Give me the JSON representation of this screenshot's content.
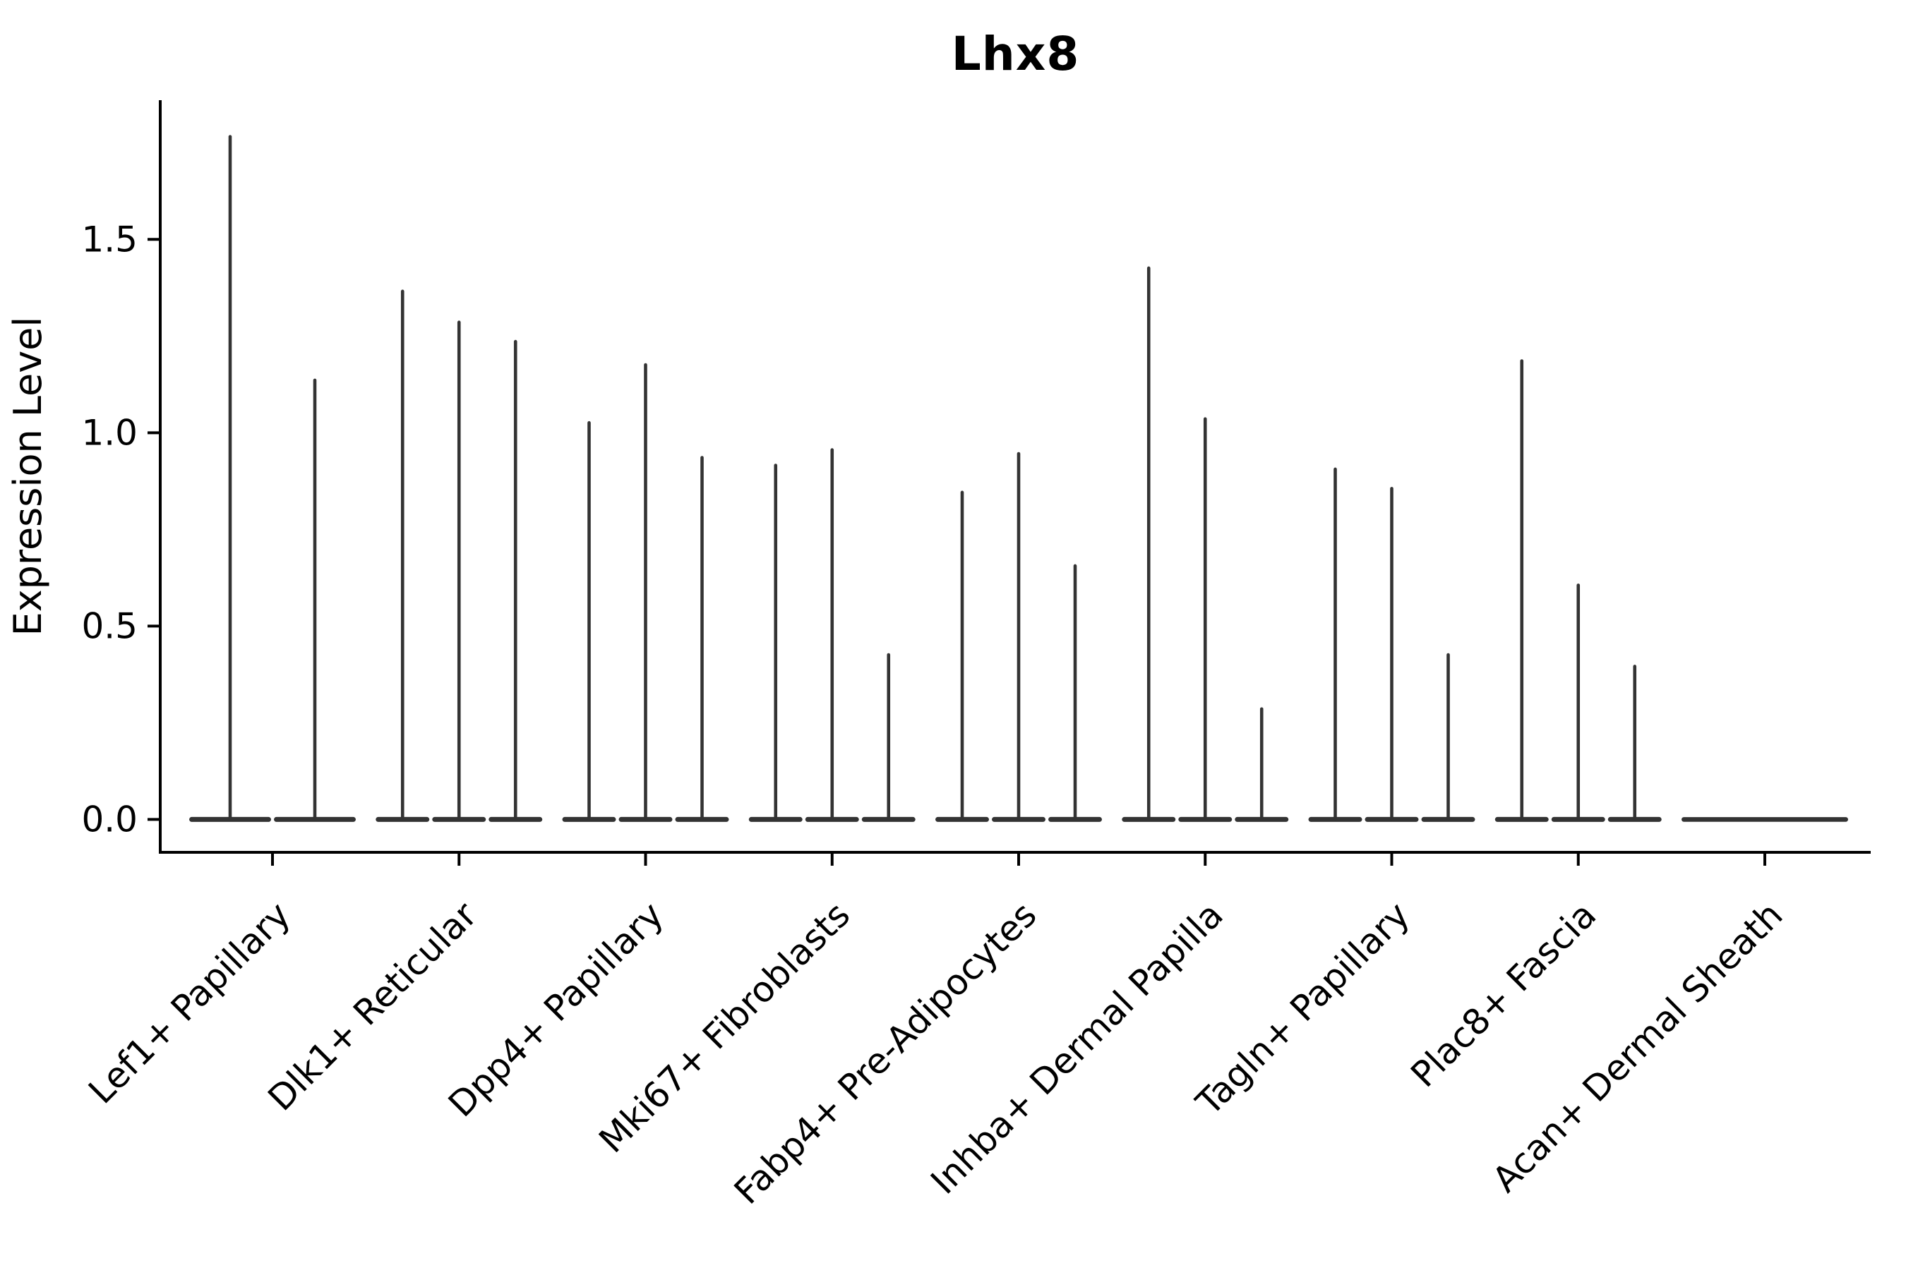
{
  "chart_data": {
    "type": "violin",
    "title": "Lhx8",
    "ylabel": "Expression Level",
    "xlabel": "",
    "ylim": [
      -0.085,
      1.86
    ],
    "yticks": [
      0.0,
      0.5,
      1.0,
      1.5
    ],
    "ytick_labels": [
      "0.0",
      "0.5",
      "1.0",
      "1.5"
    ],
    "grid": false,
    "legend_position": "none",
    "categories": [
      "Lef1+ Papillary",
      "Dlk1+ Reticular",
      "Dpp4+ Papillary",
      "Mki67+ Fibroblasts",
      "Fabp4+ Pre-Adipocytes",
      "Inhba+ Dermal Papilla",
      "Tagln+ Papillary",
      "Plac8+ Fascia",
      "Acan+ Dermal Sheath"
    ],
    "groups": [
      {
        "category": "Lef1+ Papillary",
        "n_violins": 2,
        "violin_peak_expression": [
          1.77,
          1.14
        ]
      },
      {
        "category": "Dlk1+ Reticular",
        "n_violins": 3,
        "violin_peak_expression": [
          1.37,
          1.29,
          1.24
        ]
      },
      {
        "category": "Dpp4+ Papillary",
        "n_violins": 3,
        "violin_peak_expression": [
          1.03,
          1.18,
          0.94
        ]
      },
      {
        "category": "Mki67+ Fibroblasts",
        "n_violins": 3,
        "violin_peak_expression": [
          0.92,
          0.96,
          0.43
        ]
      },
      {
        "category": "Fabp4+ Pre-Adipocytes",
        "n_violins": 3,
        "violin_peak_expression": [
          0.85,
          0.95,
          0.66
        ]
      },
      {
        "category": "Inhba+ Dermal Papilla",
        "n_violins": 3,
        "violin_peak_expression": [
          1.43,
          1.04,
          0.29
        ]
      },
      {
        "category": "Tagln+ Papillary",
        "n_violins": 3,
        "violin_peak_expression": [
          0.91,
          0.86,
          0.43
        ]
      },
      {
        "category": "Plac8+ Fascia",
        "n_violins": 3,
        "violin_peak_expression": [
          1.19,
          0.61,
          0.4
        ]
      },
      {
        "category": "Acan+ Dermal Sheath",
        "n_violins": 3,
        "violin_peak_expression": [
          0.0,
          0.0,
          0.0
        ]
      }
    ],
    "colors": {
      "violin": "#333333",
      "axis": "#000000",
      "text": "#000000",
      "background": "#ffffff"
    }
  }
}
